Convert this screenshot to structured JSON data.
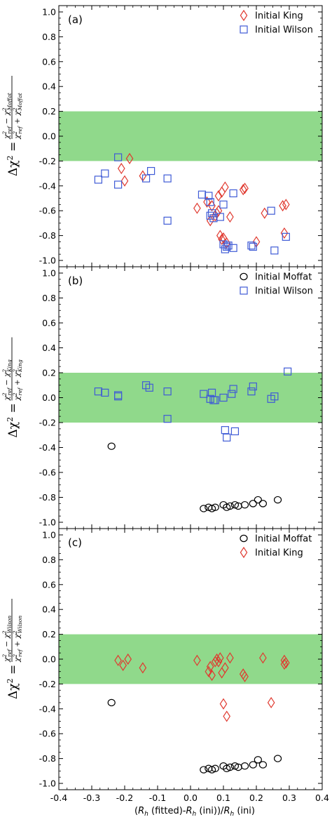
{
  "colors": {
    "band": "#90d98b",
    "king": "#e03a30",
    "wilson": "#3f5bd6",
    "moffat": "#000000"
  },
  "chart_data": [
    {
      "type": "scatter",
      "panel_label": "(a)",
      "ylabel": {
        "prefix": "Δχ",
        "prefix_sup": "2",
        "equals": "=",
        "num_a": "χ",
        "num_a_sup": "2",
        "num_a_sub": "ref",
        "num_b": "χ",
        "num_b_sup": "2",
        "num_b_sub": "Moffat",
        "den_a": "χ",
        "den_a_sup": "2",
        "den_a_sub": "ref",
        "den_b": "χ",
        "den_b_sup": "2",
        "den_b_sub": "Moffat",
        "minus": "−",
        "plus": "+"
      },
      "xlim": [
        -0.4,
        0.4
      ],
      "ylim": [
        -1.0,
        1.0
      ],
      "band": [
        -0.2,
        0.2
      ],
      "legend_position": "top-right",
      "yticks": [
        "1.0",
        "0.8",
        "0.6",
        "0.4",
        "0.2",
        "0.0",
        "-0.2",
        "-0.4",
        "-0.6",
        "-0.8",
        "-1.0"
      ],
      "series": [
        {
          "name": "Initial King",
          "marker": "diamond",
          "color": "#e03a30",
          "x": [
            -0.185,
            -0.21,
            -0.2,
            -0.145,
            0.02,
            0.05,
            0.06,
            0.065,
            0.075,
            0.08,
            0.085,
            0.09,
            0.095,
            0.1,
            0.105,
            0.11,
            0.12,
            0.16,
            0.165,
            0.2,
            0.225,
            0.28,
            0.285,
            0.29,
            0.085,
            0.095
          ],
          "y": [
            -0.18,
            -0.26,
            -0.36,
            -0.32,
            -0.58,
            -0.53,
            -0.68,
            -0.56,
            -0.64,
            -0.62,
            -0.6,
            -0.8,
            -0.45,
            -0.82,
            -0.41,
            -0.86,
            -0.65,
            -0.43,
            -0.42,
            -0.85,
            -0.62,
            -0.56,
            -0.78,
            -0.55,
            -0.48,
            -0.83
          ]
        },
        {
          "name": "Initial Wilson",
          "marker": "square",
          "color": "#3f5bd6",
          "x": [
            -0.28,
            -0.26,
            -0.22,
            -0.22,
            -0.135,
            -0.12,
            -0.07,
            -0.07,
            0.035,
            0.055,
            0.06,
            0.06,
            0.065,
            0.07,
            0.09,
            0.1,
            0.1,
            0.105,
            0.11,
            0.115,
            0.13,
            0.13,
            0.185,
            0.19,
            0.245,
            0.255,
            0.29
          ],
          "y": [
            -0.35,
            -0.3,
            -0.17,
            -0.39,
            -0.34,
            -0.28,
            -0.34,
            -0.68,
            -0.47,
            -0.48,
            -0.64,
            -0.53,
            -0.62,
            -0.66,
            -0.65,
            -0.55,
            -0.87,
            -0.91,
            -0.89,
            -0.88,
            -0.46,
            -0.9,
            -0.88,
            -0.89,
            -0.6,
            -0.92,
            -0.81
          ]
        }
      ]
    },
    {
      "type": "scatter",
      "panel_label": "(b)",
      "ylabel": {
        "prefix": "Δχ",
        "prefix_sup": "2",
        "equals": "=",
        "num_a": "χ",
        "num_a_sup": "2",
        "num_a_sub": "ref",
        "num_b": "χ",
        "num_b_sup": "2",
        "num_b_sub": "King",
        "den_a": "χ",
        "den_a_sup": "2",
        "den_a_sub": "ref",
        "den_b": "χ",
        "den_b_sup": "2",
        "den_b_sub": "King",
        "minus": "−",
        "plus": "+"
      },
      "xlim": [
        -0.4,
        0.4
      ],
      "ylim": [
        -1.0,
        1.0
      ],
      "band": [
        -0.2,
        0.2
      ],
      "legend_position": "top-right",
      "yticks": [
        "1.0",
        "0.8",
        "0.6",
        "0.4",
        "0.2",
        "0.0",
        "-0.2",
        "-0.4",
        "-0.6",
        "-0.8",
        "-1.0"
      ],
      "series": [
        {
          "name": "Initial Moffat",
          "marker": "circle",
          "color": "#000000",
          "x": [
            -0.24,
            0.04,
            0.055,
            0.065,
            0.075,
            0.1,
            0.11,
            0.12,
            0.135,
            0.145,
            0.165,
            0.19,
            0.205,
            0.22,
            0.265
          ],
          "y": [
            -0.39,
            -0.89,
            -0.88,
            -0.89,
            -0.88,
            -0.86,
            -0.88,
            -0.87,
            -0.86,
            -0.87,
            -0.86,
            -0.85,
            -0.82,
            -0.85,
            -0.82
          ]
        },
        {
          "name": "Initial Wilson",
          "marker": "square",
          "color": "#3f5bd6",
          "x": [
            -0.28,
            -0.26,
            -0.22,
            -0.22,
            -0.135,
            -0.125,
            -0.07,
            -0.07,
            0.04,
            0.06,
            0.065,
            0.07,
            0.075,
            0.1,
            0.105,
            0.11,
            0.125,
            0.13,
            0.135,
            0.185,
            0.19,
            0.245,
            0.255,
            0.295
          ],
          "y": [
            0.05,
            0.04,
            0.02,
            0.01,
            0.1,
            0.08,
            0.05,
            -0.17,
            0.03,
            -0.01,
            0.04,
            -0.02,
            -0.02,
            0.0,
            -0.26,
            -0.32,
            0.03,
            0.07,
            -0.27,
            0.05,
            0.09,
            -0.01,
            0.01,
            0.21
          ]
        }
      ]
    },
    {
      "type": "scatter",
      "panel_label": "(c)",
      "ylabel": {
        "prefix": "Δχ",
        "prefix_sup": "2",
        "equals": "=",
        "num_a": "χ",
        "num_a_sup": "2",
        "num_a_sub": "ref",
        "num_b": "χ",
        "num_b_sup": "2",
        "num_b_sub": "Wilson",
        "den_a": "χ",
        "den_a_sup": "2",
        "den_a_sub": "ref",
        "den_b": "χ",
        "den_b_sup": "2",
        "den_b_sub": "Wilson",
        "minus": "−",
        "plus": "+"
      },
      "xlabel": "(R_h (fitted)-R_h (ini))/R_h (ini)",
      "xlabel_parts": {
        "open": "(",
        "r": "R",
        "h": "h",
        "fitted": " (fitted)-",
        "ini": " (ini))/",
        "ini2": " (ini)"
      },
      "xlim": [
        -0.4,
        0.4
      ],
      "ylim": [
        -1.0,
        1.0
      ],
      "band": [
        -0.2,
        0.2
      ],
      "legend_position": "top-right",
      "xticks": [
        "-0.4",
        "-0.3",
        "-0.2",
        "-0.1",
        "0.0",
        "0.1",
        "0.2",
        "0.3",
        "0.4"
      ],
      "yticks": [
        "1.0",
        "0.8",
        "0.6",
        "0.4",
        "0.2",
        "0.0",
        "-0.2",
        "-0.4",
        "-0.6",
        "-0.8",
        "-1.0"
      ],
      "series": [
        {
          "name": "Initial Moffat",
          "marker": "circle",
          "color": "#000000",
          "x": [
            -0.24,
            0.04,
            0.055,
            0.065,
            0.075,
            0.1,
            0.11,
            0.12,
            0.135,
            0.145,
            0.165,
            0.19,
            0.205,
            0.22,
            0.265
          ],
          "y": [
            -0.35,
            -0.89,
            -0.88,
            -0.89,
            -0.88,
            -0.86,
            -0.88,
            -0.87,
            -0.86,
            -0.87,
            -0.86,
            -0.85,
            -0.81,
            -0.85,
            -0.8
          ]
        },
        {
          "name": "Initial King",
          "marker": "diamond",
          "color": "#e03a30",
          "x": [
            -0.22,
            -0.205,
            -0.19,
            -0.145,
            0.02,
            0.055,
            0.06,
            0.065,
            0.075,
            0.08,
            0.085,
            0.09,
            0.095,
            0.1,
            0.105,
            0.11,
            0.12,
            0.16,
            0.165,
            0.22,
            0.245,
            0.285,
            0.285,
            0.29
          ],
          "y": [
            -0.01,
            -0.05,
            0.0,
            -0.07,
            -0.01,
            -0.1,
            -0.06,
            -0.13,
            -0.02,
            0.0,
            -0.02,
            0.01,
            -0.11,
            -0.36,
            -0.07,
            -0.46,
            0.01,
            -0.12,
            -0.14,
            0.01,
            -0.35,
            -0.01,
            -0.04,
            -0.03
          ]
        }
      ]
    }
  ]
}
